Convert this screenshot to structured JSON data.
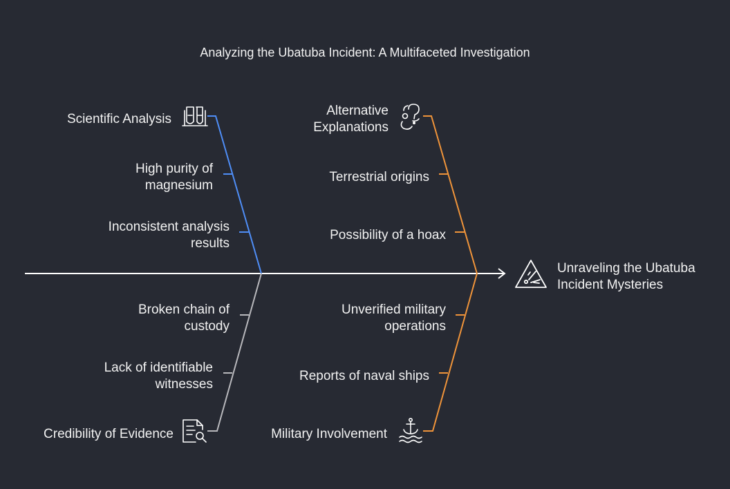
{
  "title": "Analyzing the Ubatuba Incident: A Multifaceted Investigation",
  "head": {
    "label_line1": "Unraveling the Ubatuba",
    "label_line2": "Incident Mysteries",
    "icon": "warning-triangle-icon"
  },
  "colors": {
    "background": "#272a33",
    "spine": "#ffffff",
    "scientific": "#4f8ef7",
    "credibility": "#b9b9bd",
    "alternative": "#f0943a",
    "military": "#f0943a"
  },
  "categories": {
    "scientific": {
      "label": "Scientific Analysis",
      "icon": "test-tubes-icon",
      "causes": [
        {
          "line1": "High purity of",
          "line2": "magnesium"
        },
        {
          "line1": "Inconsistent analysis",
          "line2": "results"
        }
      ]
    },
    "alternative": {
      "label_line1": "Alternative",
      "label_line2": "Explanations",
      "icon": "question-marks-icon",
      "causes": [
        {
          "line1": "Terrestrial origins"
        },
        {
          "line1": "Possibility of a hoax"
        }
      ]
    },
    "credibility": {
      "label": "Credibility of Evidence",
      "icon": "document-search-icon",
      "causes": [
        {
          "line1": "Broken chain of",
          "line2": "custody"
        },
        {
          "line1": "Lack of identifiable",
          "line2": "witnesses"
        }
      ]
    },
    "military": {
      "label": "Military Involvement",
      "icon": "anchor-waves-icon",
      "causes": [
        {
          "line1": "Unverified military",
          "line2": "operations"
        },
        {
          "line1": "Reports of naval ships"
        }
      ]
    }
  }
}
